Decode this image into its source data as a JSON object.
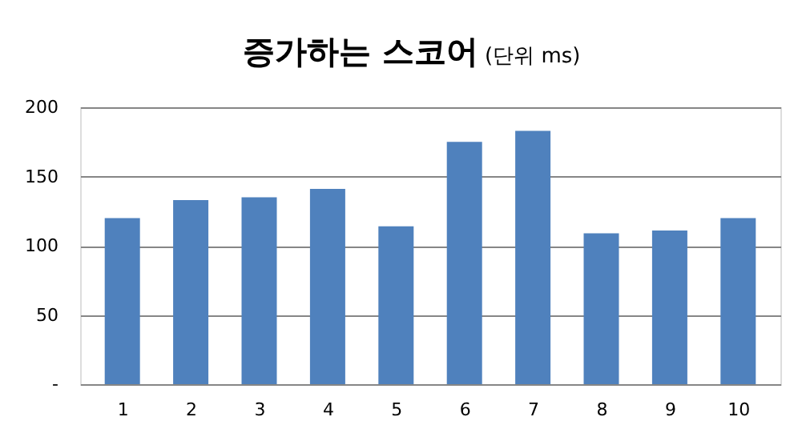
{
  "chart_data": {
    "type": "bar",
    "title": "증가하는 스코어",
    "subtitle": "(단위 ms)",
    "categories": [
      "1",
      "2",
      "3",
      "4",
      "5",
      "6",
      "7",
      "8",
      "9",
      "10"
    ],
    "values": [
      120,
      133,
      135,
      141,
      114,
      175,
      183,
      109,
      111,
      120
    ],
    "color": "#4f81bd",
    "ylim": [
      0,
      200
    ],
    "yticks": [
      {
        "value": 0,
        "label": "-"
      },
      50,
      100,
      150,
      200
    ],
    "grid": "y"
  }
}
